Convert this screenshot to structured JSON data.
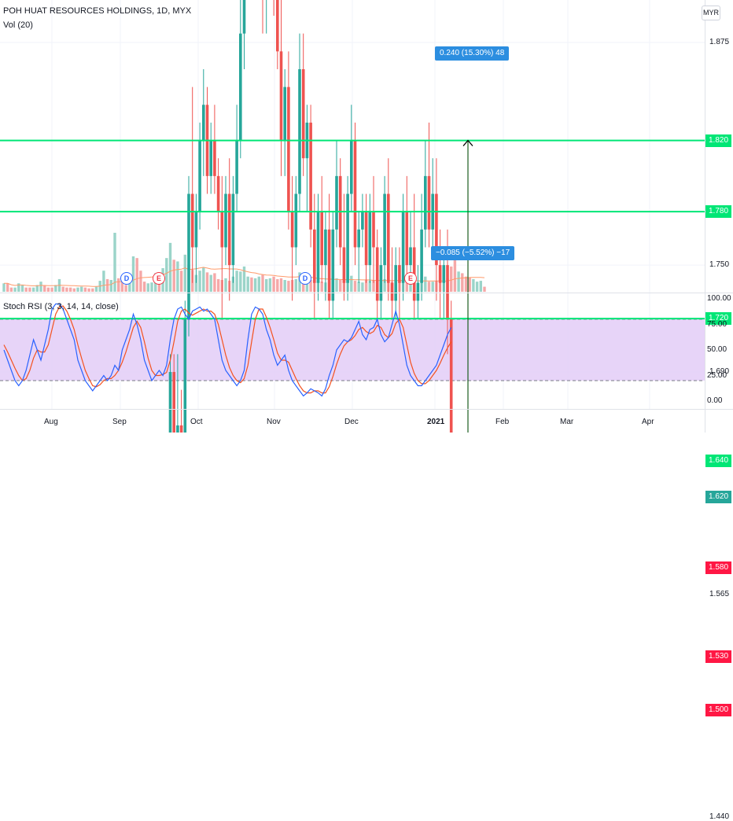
{
  "chart_data": {
    "type": "candlestick",
    "legend": {
      "symbol": "POH HUAT RESOURCES HOLDINGS, 1D, MYX",
      "volume": "Vol (20)",
      "oscillator": "Stoch RSI (3, 3, 14, 14, close)"
    },
    "currency": "MYR",
    "y_axis_ticks": [
      "1.875",
      "1.750",
      "1.690",
      "1.565",
      "1.440"
    ],
    "last_price_label": "1.620",
    "last_price": 1.62,
    "horizontal_lines": [
      {
        "price": 1.82,
        "label": "1.820",
        "color": "#00e676"
      },
      {
        "price": 1.78,
        "label": "1.780",
        "color": "#00e676"
      },
      {
        "price": 1.72,
        "label": "1.720",
        "color": "#00e676"
      },
      {
        "price": 1.64,
        "label": "1.640",
        "color": "#00e676"
      },
      {
        "price": 1.58,
        "label": "1.580",
        "color": "#ff1744"
      },
      {
        "price": 1.53,
        "label": "1.530",
        "color": "#ff1744"
      },
      {
        "price": 1.5,
        "label": "1.500",
        "color": "#ff1744"
      }
    ],
    "measure_up": "0.240 (15.30%) 48",
    "measure_down": "−0.085 (−5.52%) −17",
    "events": [
      {
        "letter": "D",
        "type": "dividend",
        "date": "Sep"
      },
      {
        "letter": "E",
        "type": "earnings",
        "date": "Sep"
      },
      {
        "letter": "D",
        "type": "dividend",
        "date": "Nov"
      },
      {
        "letter": "E",
        "type": "earnings",
        "date": "Dec"
      }
    ],
    "stoch_ticks": [
      "100.00",
      "75.00",
      "50.00",
      "25.00",
      "0.00"
    ],
    "stoch_bands": [
      80,
      20
    ],
    "x_axis_labels": [
      {
        "label": "Aug",
        "bold": false
      },
      {
        "label": "Sep",
        "bold": false
      },
      {
        "label": "Oct",
        "bold": false
      },
      {
        "label": "Nov",
        "bold": false
      },
      {
        "label": "Dec",
        "bold": false
      },
      {
        "label": "2021",
        "bold": true
      },
      {
        "label": "Feb",
        "bold": false
      },
      {
        "label": "Mar",
        "bold": false
      },
      {
        "label": "Apr",
        "bold": false
      }
    ],
    "candles_ohlc": [
      [
        1.46,
        1.47,
        1.455,
        1.465
      ],
      [
        1.465,
        1.47,
        1.455,
        1.46
      ],
      [
        1.46,
        1.465,
        1.45,
        1.455
      ],
      [
        1.455,
        1.46,
        1.45,
        1.46
      ],
      [
        1.46,
        1.465,
        1.455,
        1.46
      ],
      [
        1.46,
        1.47,
        1.455,
        1.465
      ],
      [
        1.465,
        1.47,
        1.455,
        1.46
      ],
      [
        1.46,
        1.465,
        1.455,
        1.455
      ],
      [
        1.455,
        1.465,
        1.45,
        1.46
      ],
      [
        1.46,
        1.47,
        1.455,
        1.465
      ],
      [
        1.465,
        1.475,
        1.46,
        1.47
      ],
      [
        1.47,
        1.475,
        1.46,
        1.465
      ],
      [
        1.465,
        1.47,
        1.455,
        1.46
      ],
      [
        1.46,
        1.465,
        1.45,
        1.455
      ],
      [
        1.455,
        1.47,
        1.45,
        1.465
      ],
      [
        1.465,
        1.48,
        1.46,
        1.475
      ],
      [
        1.475,
        1.48,
        1.46,
        1.465
      ],
      [
        1.465,
        1.47,
        1.455,
        1.46
      ],
      [
        1.46,
        1.465,
        1.45,
        1.455
      ],
      [
        1.455,
        1.46,
        1.445,
        1.45
      ],
      [
        1.45,
        1.46,
        1.44,
        1.455
      ],
      [
        1.455,
        1.465,
        1.45,
        1.46
      ],
      [
        1.46,
        1.465,
        1.45,
        1.455
      ],
      [
        1.455,
        1.46,
        1.445,
        1.45
      ],
      [
        1.45,
        1.455,
        1.44,
        1.445
      ],
      [
        1.445,
        1.46,
        1.44,
        1.455
      ],
      [
        1.455,
        1.475,
        1.45,
        1.47
      ],
      [
        1.47,
        1.5,
        1.465,
        1.495
      ],
      [
        1.495,
        1.51,
        1.47,
        1.475
      ],
      [
        1.475,
        1.5,
        1.47,
        1.49
      ],
      [
        1.49,
        1.6,
        1.485,
        1.51
      ],
      [
        1.51,
        1.52,
        1.48,
        1.485
      ],
      [
        1.485,
        1.49,
        1.47,
        1.475
      ],
      [
        1.475,
        1.48,
        1.465,
        1.47
      ],
      [
        1.47,
        1.49,
        1.465,
        1.48
      ],
      [
        1.48,
        1.53,
        1.475,
        1.52
      ],
      [
        1.52,
        1.56,
        1.51,
        1.5
      ],
      [
        1.5,
        1.505,
        1.48,
        1.485
      ],
      [
        1.485,
        1.49,
        1.47,
        1.475
      ],
      [
        1.475,
        1.485,
        1.47,
        1.48
      ],
      [
        1.48,
        1.49,
        1.475,
        1.485
      ],
      [
        1.485,
        1.52,
        1.48,
        1.51
      ],
      [
        1.51,
        1.52,
        1.5,
        1.505
      ],
      [
        1.505,
        1.55,
        1.5,
        1.54
      ],
      [
        1.54,
        1.6,
        1.535,
        1.59
      ],
      [
        1.59,
        1.7,
        1.585,
        1.69
      ],
      [
        1.69,
        1.7,
        1.62,
        1.63
      ],
      [
        1.63,
        1.7,
        1.6,
        1.66
      ],
      [
        1.66,
        1.68,
        1.63,
        1.64
      ],
      [
        1.64,
        1.73,
        1.635,
        1.72
      ],
      [
        1.72,
        1.8,
        1.71,
        1.79
      ],
      [
        1.79,
        1.85,
        1.74,
        1.76
      ],
      [
        1.76,
        1.79,
        1.74,
        1.78
      ],
      [
        1.78,
        1.83,
        1.77,
        1.82
      ],
      [
        1.82,
        1.86,
        1.8,
        1.84
      ],
      [
        1.84,
        1.85,
        1.79,
        1.8
      ],
      [
        1.8,
        1.83,
        1.79,
        1.82
      ],
      [
        1.82,
        1.84,
        1.79,
        1.8
      ],
      [
        1.8,
        1.81,
        1.77,
        1.78
      ],
      [
        1.78,
        1.8,
        1.72,
        1.76
      ],
      [
        1.76,
        1.8,
        1.75,
        1.79
      ],
      [
        1.79,
        1.81,
        1.73,
        1.75
      ],
      [
        1.75,
        1.8,
        1.74,
        1.79
      ],
      [
        1.79,
        1.84,
        1.78,
        1.82
      ],
      [
        1.82,
        1.9,
        1.81,
        1.88
      ],
      [
        1.88,
        1.95,
        1.86,
        1.93
      ],
      [
        1.93,
        1.97,
        1.9,
        1.95
      ],
      [
        1.95,
        1.97,
        1.91,
        1.93
      ],
      [
        1.93,
        1.96,
        1.9,
        1.94
      ],
      [
        1.94,
        1.97,
        1.92,
        1.96
      ],
      [
        1.96,
        1.97,
        1.88,
        1.9
      ],
      [
        1.9,
        1.94,
        1.88,
        1.92
      ],
      [
        1.92,
        1.97,
        1.91,
        1.95
      ],
      [
        1.95,
        1.97,
        1.89,
        1.9
      ],
      [
        1.9,
        1.93,
        1.86,
        1.87
      ],
      [
        1.87,
        1.9,
        1.8,
        1.82
      ],
      [
        1.82,
        1.86,
        1.8,
        1.85
      ],
      [
        1.85,
        1.87,
        1.77,
        1.78
      ],
      [
        1.78,
        1.8,
        1.73,
        1.76
      ],
      [
        1.76,
        1.8,
        1.75,
        1.79
      ],
      [
        1.79,
        1.88,
        1.78,
        1.86
      ],
      [
        1.86,
        1.88,
        1.8,
        1.81
      ],
      [
        1.81,
        1.84,
        1.78,
        1.83
      ],
      [
        1.83,
        1.84,
        1.76,
        1.77
      ],
      [
        1.77,
        1.79,
        1.72,
        1.74
      ],
      [
        1.74,
        1.79,
        1.73,
        1.78
      ],
      [
        1.78,
        1.8,
        1.74,
        1.75
      ],
      [
        1.75,
        1.78,
        1.73,
        1.77
      ],
      [
        1.77,
        1.79,
        1.72,
        1.73
      ],
      [
        1.73,
        1.78,
        1.72,
        1.77
      ],
      [
        1.77,
        1.82,
        1.76,
        1.8
      ],
      [
        1.8,
        1.81,
        1.75,
        1.76
      ],
      [
        1.76,
        1.79,
        1.73,
        1.74
      ],
      [
        1.74,
        1.8,
        1.73,
        1.79
      ],
      [
        1.79,
        1.84,
        1.78,
        1.82
      ],
      [
        1.82,
        1.83,
        1.75,
        1.76
      ],
      [
        1.76,
        1.78,
        1.74,
        1.77
      ],
      [
        1.77,
        1.79,
        1.76,
        1.78
      ],
      [
        1.78,
        1.79,
        1.74,
        1.75
      ],
      [
        1.75,
        1.79,
        1.74,
        1.78
      ],
      [
        1.78,
        1.8,
        1.74,
        1.76
      ],
      [
        1.76,
        1.77,
        1.72,
        1.73
      ],
      [
        1.73,
        1.76,
        1.72,
        1.75
      ],
      [
        1.75,
        1.8,
        1.74,
        1.79
      ],
      [
        1.79,
        1.81,
        1.73,
        1.74
      ],
      [
        1.74,
        1.76,
        1.72,
        1.73
      ],
      [
        1.73,
        1.76,
        1.72,
        1.75
      ],
      [
        1.75,
        1.76,
        1.72,
        1.74
      ],
      [
        1.74,
        1.79,
        1.73,
        1.78
      ],
      [
        1.78,
        1.8,
        1.74,
        1.75
      ],
      [
        1.75,
        1.78,
        1.74,
        1.76
      ],
      [
        1.76,
        1.79,
        1.72,
        1.73
      ],
      [
        1.73,
        1.75,
        1.72,
        1.74
      ],
      [
        1.74,
        1.79,
        1.73,
        1.77
      ],
      [
        1.77,
        1.82,
        1.76,
        1.8
      ],
      [
        1.8,
        1.83,
        1.76,
        1.77
      ],
      [
        1.77,
        1.81,
        1.76,
        1.79
      ],
      [
        1.79,
        1.81,
        1.73,
        1.75
      ],
      [
        1.75,
        1.77,
        1.72,
        1.74
      ],
      [
        1.74,
        1.76,
        1.72,
        1.75
      ],
      [
        1.75,
        1.77,
        1.7,
        1.72
      ],
      [
        1.72,
        1.73,
        1.62,
        1.63
      ],
      [
        1.63,
        1.64,
        1.54,
        1.56
      ],
      [
        1.56,
        1.6,
        1.55,
        1.58
      ],
      [
        1.58,
        1.6,
        1.53,
        1.54
      ],
      [
        1.54,
        1.56,
        1.52,
        1.53
      ],
      [
        1.53,
        1.55,
        1.5,
        1.51
      ],
      [
        1.51,
        1.56,
        1.5,
        1.55
      ],
      [
        1.55,
        1.6,
        1.54,
        1.59
      ],
      [
        1.59,
        1.64,
        1.58,
        1.63
      ],
      [
        1.63,
        1.65,
        1.6,
        1.62
      ]
    ],
    "volume": [
      1,
      1,
      0.5,
      0.5,
      1,
      0.8,
      0.5,
      0.5,
      0.5,
      0.8,
      1.2,
      0.7,
      0.5,
      0.5,
      0.8,
      1.5,
      0.6,
      0.5,
      0.5,
      0.4,
      0.5,
      0.6,
      0.5,
      0.4,
      0.4,
      0.6,
      1.3,
      2.5,
      1.5,
      1.4,
      7,
      1.6,
      1.2,
      0.8,
      1.2,
      4.2,
      4,
      2.5,
      1.2,
      1,
      1.1,
      2.2,
      1.7,
      2.8,
      4,
      5.8,
      3.8,
      3.6,
      2.5,
      4.4,
      3.2,
      2.6,
      2,
      2.5,
      2.9,
      2.3,
      2,
      2.2,
      1.5,
      1.4,
      1.6,
      1.3,
      1.8,
      2.5,
      2.4,
      3,
      1.8,
      1.7,
      1.6,
      1.8,
      2,
      1.5,
      1.6,
      1.8,
      1.5,
      1.6,
      1.4,
      1.3,
      1.4,
      1.5,
      2.3,
      1.4,
      1.5,
      1.4,
      1.2,
      1.3,
      1.2,
      1.1,
      1.2,
      1.4,
      1.6,
      1.4,
      1.3,
      1.5,
      1.9,
      1.3,
      1.2,
      1.1,
      1.4,
      1.3,
      1.4,
      1.2,
      1.1,
      1.5,
      1.3,
      1.2,
      1.1,
      1.1,
      1.3,
      1.4,
      1.2,
      1.3,
      1.1,
      1.3,
      1.8,
      1.2,
      1.2,
      1.3,
      1.2,
      1.2,
      1.6,
      3,
      4.5,
      2.4,
      2.2,
      1.8,
      1.7,
      1.5,
      1.2,
      1.3,
      0.6
    ],
    "stoch_k": [
      50,
      40,
      30,
      20,
      15,
      20,
      30,
      45,
      60,
      50,
      40,
      55,
      70,
      90,
      95,
      95,
      90,
      80,
      70,
      60,
      40,
      30,
      20,
      15,
      10,
      15,
      20,
      25,
      20,
      25,
      35,
      30,
      50,
      60,
      70,
      85,
      75,
      60,
      40,
      30,
      20,
      25,
      30,
      25,
      35,
      60,
      80,
      90,
      92,
      85,
      80,
      88,
      90,
      92,
      88,
      90,
      85,
      80,
      60,
      40,
      30,
      25,
      20,
      15,
      20,
      30,
      60,
      85,
      92,
      90,
      85,
      70,
      60,
      45,
      35,
      40,
      45,
      30,
      20,
      15,
      10,
      5,
      8,
      12,
      10,
      8,
      5,
      12,
      25,
      35,
      50,
      55,
      60,
      58,
      62,
      70,
      78,
      65,
      60,
      70,
      72,
      80,
      65,
      58,
      62,
      75,
      88,
      75,
      55,
      35,
      25,
      20,
      15,
      15,
      20,
      25,
      30,
      35,
      45,
      55,
      65,
      72
    ],
    "stoch_d": [
      55,
      48,
      40,
      32,
      25,
      20,
      22,
      30,
      42,
      50,
      48,
      48,
      55,
      70,
      85,
      92,
      93,
      88,
      80,
      70,
      55,
      42,
      30,
      22,
      15,
      14,
      16,
      20,
      22,
      22,
      25,
      30,
      38,
      48,
      60,
      72,
      78,
      72,
      58,
      42,
      30,
      25,
      25,
      26,
      28,
      40,
      58,
      78,
      88,
      90,
      86,
      84,
      86,
      88,
      90,
      88,
      88,
      85,
      75,
      60,
      45,
      33,
      25,
      20,
      18,
      22,
      35,
      58,
      80,
      90,
      90,
      82,
      72,
      60,
      47,
      40,
      40,
      38,
      30,
      22,
      15,
      10,
      8,
      8,
      10,
      10,
      8,
      8,
      14,
      24,
      36,
      46,
      54,
      58,
      60,
      64,
      70,
      72,
      68,
      66,
      68,
      74,
      72,
      65,
      62,
      66,
      76,
      80,
      72,
      55,
      38,
      27,
      20,
      17,
      17,
      20,
      25,
      30,
      37,
      45,
      52,
      58
    ]
  }
}
